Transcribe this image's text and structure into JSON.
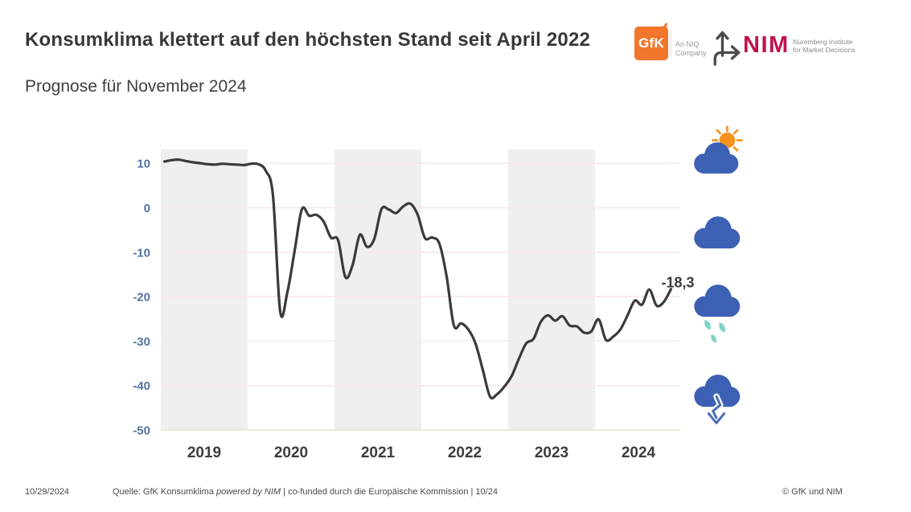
{
  "header": {
    "title": "Konsumklima klettert auf den höchsten Stand seit April 2022",
    "subtitle": "Prognose für November 2024"
  },
  "logos": {
    "gfk": {
      "mark": "GfK",
      "tagline_line1": "An NIQ",
      "tagline_line2": "Company"
    },
    "nim": {
      "mark": "NIM",
      "tagline_line1": "Nuremberg Institute",
      "tagline_line2": "for Market Decisions"
    }
  },
  "colors": {
    "gfk_orange": "#F0772B",
    "nim_crimson": "#C0134C",
    "cloud_blue": "#3C60B3",
    "sun_orange": "#F6921E",
    "rain_teal": "#7ED4C9",
    "arrow_blue": "#4A6FAE"
  },
  "chart_data": {
    "type": "line",
    "title": "GfK Konsumklima",
    "x_unit": "month",
    "start": "2019-01",
    "end": "2024-11",
    "years": [
      "2019",
      "2020",
      "2021",
      "2022",
      "2023",
      "2024"
    ],
    "shaded_years": [
      "2019",
      "2021",
      "2023"
    ],
    "yticks": [
      10,
      0,
      -10,
      -20,
      -30,
      -40,
      -50
    ],
    "ylim": [
      -50,
      13.1
    ],
    "grid": true,
    "legend": "none",
    "series": [
      {
        "name": "GfK Konsumklima",
        "values": [
          10.4,
          10.7,
          10.8,
          10.5,
          10.2,
          10.0,
          9.8,
          9.7,
          9.9,
          9.8,
          9.7,
          9.6,
          9.9,
          9.8,
          8.3,
          2.7,
          -23.4,
          -18.9,
          -9.6,
          -0.3,
          -1.8,
          -1.6,
          -3.1,
          -6.7,
          -7.3,
          -15.6,
          -12.9,
          -6.1,
          -8.8,
          -7.0,
          -0.3,
          -0.4,
          -1.2,
          0.3,
          0.9,
          -1.6,
          -6.8,
          -6.7,
          -8.1,
          -15.5,
          -26.5,
          -26.0,
          -27.4,
          -30.6,
          -36.5,
          -42.5,
          -41.9,
          -40.2,
          -37.8,
          -33.9,
          -30.5,
          -29.5,
          -25.7,
          -24.2,
          -25.4,
          -24.4,
          -26.5,
          -26.7,
          -28.1,
          -27.8,
          -25.1,
          -29.7,
          -29.0,
          -27.4,
          -24.2,
          -20.9,
          -21.8,
          -18.4,
          -22.0,
          -21.2,
          -18.3
        ]
      }
    ],
    "end_label": "-18,3",
    "end_value": -18.3,
    "colors": {
      "line": "#3A3A3A",
      "band": "#EFEFF0",
      "grid": "#F4EAE7",
      "baseline": "#ECE3D4",
      "tick_label": "#53739F",
      "year_label": "#3E3E3E",
      "end_label": "#3A3A3A"
    }
  },
  "weather_icons": [
    {
      "name": "sun-behind-cloud"
    },
    {
      "name": "cloud"
    },
    {
      "name": "rain-cloud"
    },
    {
      "name": "cloud-down-arrow"
    }
  ],
  "footer": {
    "date": "10/29/2024",
    "source_prefix": "Quelle: GfK Konsumklima ",
    "source_italic": "powered by NIM",
    "source_suffix": " | co-funded durch die Europäische Kommission | 10/24",
    "copyright": "© GfK und NIM"
  }
}
